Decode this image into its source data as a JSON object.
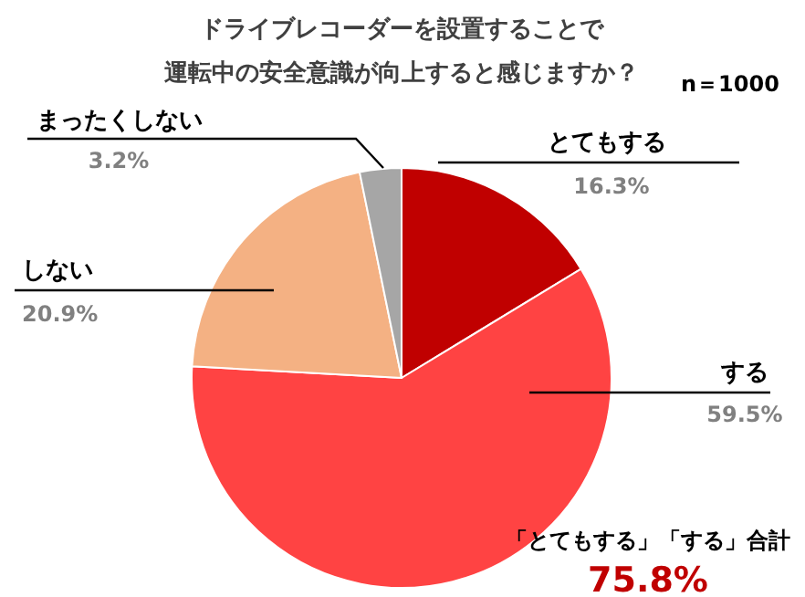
{
  "chart_data": {
    "type": "pie",
    "title": "ドライブレコーダーを設置することで",
    "subtitle": "運転中の安全意識が向上すると感じますか？",
    "categories": [
      "とてもする",
      "する",
      "しない",
      "まったくしない"
    ],
    "values": [
      16.3,
      59.5,
      20.9,
      3.2
    ],
    "value_labels": [
      "16.3%",
      "59.5%",
      "20.9%",
      "3.2%"
    ],
    "colors": [
      "#c00000",
      "#ff4343",
      "#f4b183",
      "#a6a6a6"
    ],
    "annotations": [
      "n＝1000",
      "「とてもする」「する」合計",
      "75.8%"
    ]
  }
}
